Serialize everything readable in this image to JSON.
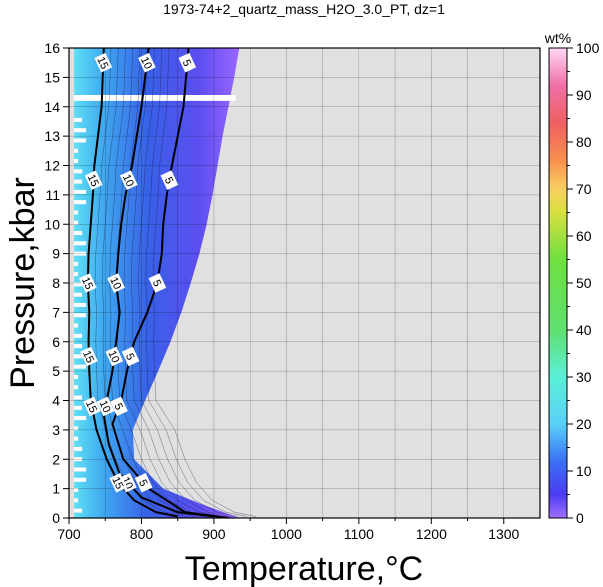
{
  "chart_data": {
    "type": "heatmap",
    "title": "1973-74+2_quartz_mass_H2O_3.0_PT, dz=1",
    "xlabel": "Temperature,°C",
    "ylabel": "Pressure,kbar",
    "xlim": [
      700,
      1350
    ],
    "ylim": [
      0,
      16
    ],
    "xticks": [
      700,
      800,
      900,
      1000,
      1100,
      1200,
      1300
    ],
    "yticks": [
      0,
      1,
      2,
      3,
      4,
      5,
      6,
      7,
      8,
      9,
      10,
      11,
      12,
      13,
      14,
      15,
      16
    ],
    "grid": true,
    "background_color": "#e0e0e0",
    "colorbar": {
      "label": "wt%",
      "min": 0,
      "max": 100,
      "ticks": [
        0,
        10,
        20,
        30,
        40,
        50,
        60,
        70,
        80,
        90,
        100
      ]
    },
    "field_boundary": {
      "description_points_T_at_P": [
        {
          "P": 16,
          "T": 935
        },
        {
          "P": 15,
          "T": 928
        },
        {
          "P": 14,
          "T": 920
        },
        {
          "P": 13,
          "T": 912
        },
        {
          "P": 12,
          "T": 905
        },
        {
          "P": 11,
          "T": 898
        },
        {
          "P": 10,
          "T": 890
        },
        {
          "P": 9,
          "T": 880
        },
        {
          "P": 8,
          "T": 868
        },
        {
          "P": 7,
          "T": 855
        },
        {
          "P": 6,
          "T": 840
        },
        {
          "P": 5,
          "T": 823
        },
        {
          "P": 4,
          "T": 805
        },
        {
          "P": 3,
          "T": 788
        },
        {
          "P": 2,
          "T": 790
        },
        {
          "P": 1,
          "T": 830
        },
        {
          "P": 0.5,
          "T": 880
        },
        {
          "P": 0,
          "T": 935
        }
      ],
      "low_T_edge": 707
    },
    "contours": [
      {
        "level": 5,
        "labels": [
          "5"
        ],
        "points": [
          [
            865,
            16
          ],
          [
            858,
            14
          ],
          [
            842,
            12
          ],
          [
            835,
            11
          ],
          [
            830,
            10
          ],
          [
            828,
            9
          ],
          [
            822,
            8
          ],
          [
            808,
            7
          ],
          [
            790,
            6
          ],
          [
            780,
            5
          ],
          [
            772,
            4
          ],
          [
            760,
            3.2
          ],
          [
            775,
            2
          ],
          [
            810,
            1
          ],
          [
            860,
            0.2
          ],
          [
            920,
            0
          ]
        ]
      },
      {
        "level": 10,
        "labels": [
          "10"
        ],
        "points": [
          [
            810,
            16
          ],
          [
            800,
            14
          ],
          [
            787,
            12
          ],
          [
            778,
            11
          ],
          [
            772,
            10
          ],
          [
            768,
            9
          ],
          [
            765,
            8
          ],
          [
            770,
            7
          ],
          [
            765,
            6
          ],
          [
            760,
            5
          ],
          [
            752,
            4
          ],
          [
            748,
            3.5
          ],
          [
            755,
            2.5
          ],
          [
            770,
            1.5
          ],
          [
            800,
            0.7
          ],
          [
            850,
            0.2
          ],
          [
            900,
            0.05
          ]
        ]
      },
      {
        "level": 15,
        "labels": [
          "15"
        ],
        "points": [
          [
            748,
            16
          ],
          [
            745,
            14
          ],
          [
            735,
            12
          ],
          [
            733,
            11
          ],
          [
            730,
            10
          ],
          [
            727,
            9
          ],
          [
            726,
            8
          ],
          [
            728,
            7
          ],
          [
            727,
            6
          ],
          [
            728,
            5
          ],
          [
            730,
            4
          ],
          [
            738,
            3
          ],
          [
            752,
            2
          ],
          [
            768,
            1.2
          ],
          [
            790,
            0.6
          ],
          [
            820,
            0.2
          ],
          [
            850,
            0.05
          ]
        ]
      }
    ],
    "gap_band": {
      "P_from": 14.2,
      "P_to": 14.4
    }
  }
}
